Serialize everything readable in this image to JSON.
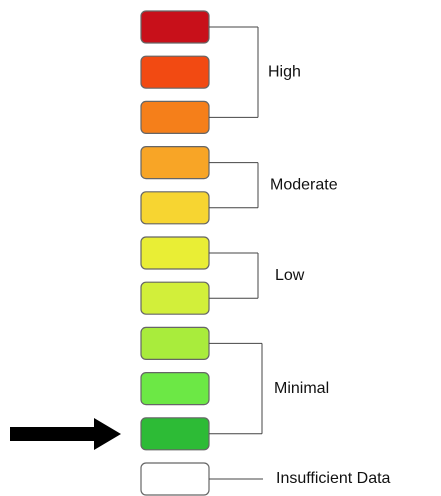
{
  "groups": [
    {
      "label": "High",
      "colors": [
        "#c8101a",
        "#f24a12",
        "#f57f1a"
      ]
    },
    {
      "label": "Moderate",
      "colors": [
        "#f8a526",
        "#f7d531"
      ]
    },
    {
      "label": "Low",
      "colors": [
        "#e9ee35",
        "#d2ef3a"
      ]
    },
    {
      "label": "Minimal",
      "colors": [
        "#a9ec3c",
        "#6ce845",
        "#2dbb36"
      ]
    },
    {
      "label": "Insufficient Data",
      "colors": [
        "#ffffff"
      ]
    }
  ]
}
